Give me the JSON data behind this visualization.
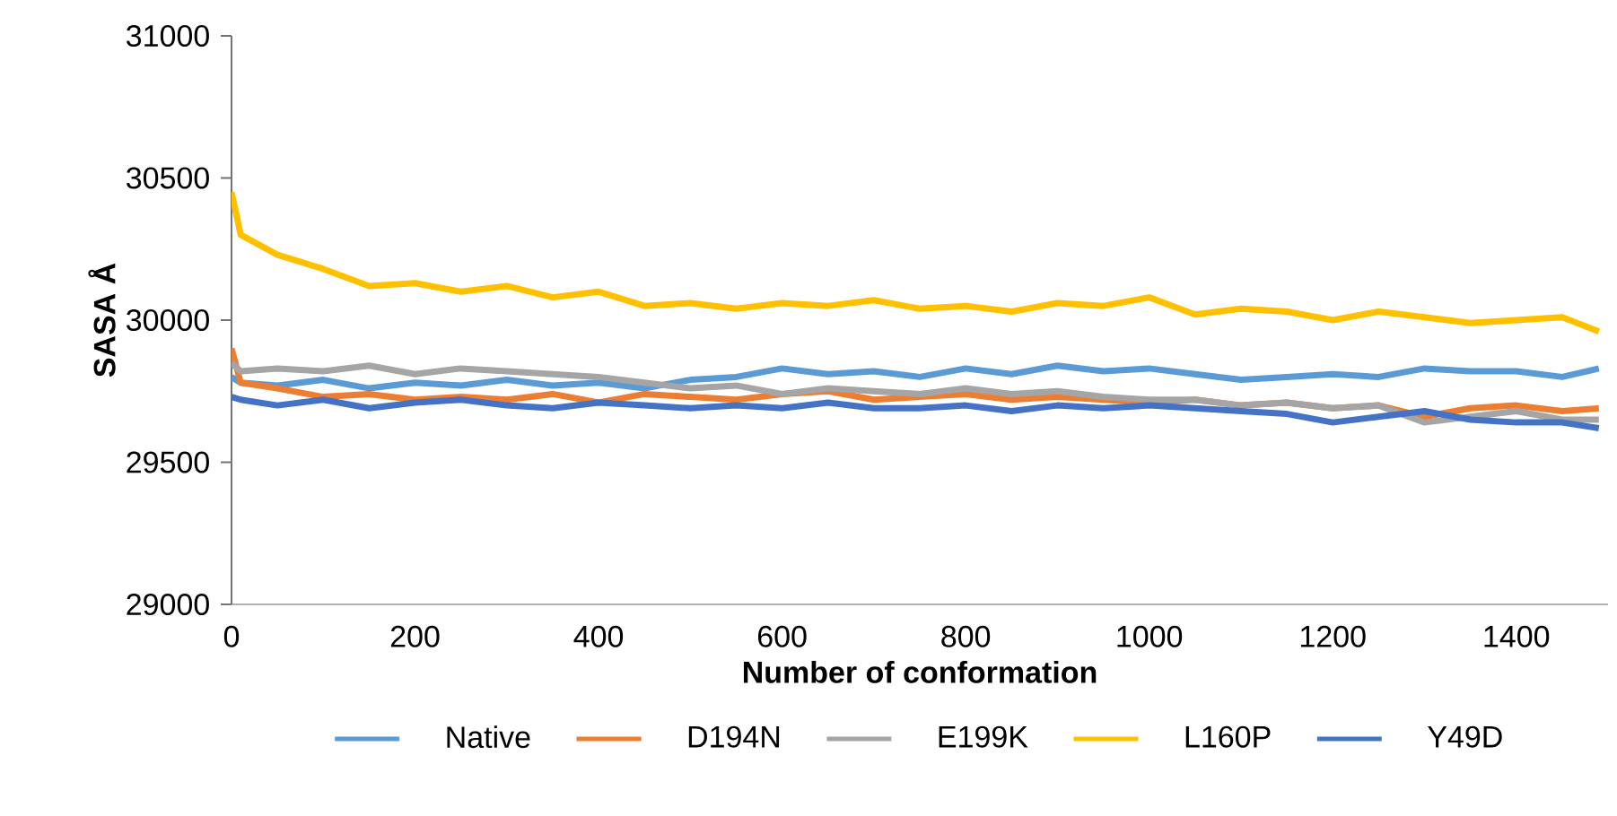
{
  "chart_data": {
    "type": "line",
    "xlabel": "Number of conformation",
    "ylabel": "SASA Å",
    "x": [
      0,
      10,
      50,
      100,
      150,
      200,
      250,
      300,
      350,
      400,
      450,
      500,
      550,
      600,
      650,
      700,
      750,
      800,
      850,
      900,
      950,
      1000,
      1050,
      1100,
      1150,
      1200,
      1250,
      1300,
      1350,
      1400,
      1450,
      1490
    ],
    "series": [
      {
        "name": "Native",
        "color": "#5b9bd5",
        "values": [
          29800,
          29780,
          29770,
          29790,
          29760,
          29780,
          29770,
          29790,
          29770,
          29780,
          29760,
          29790,
          29800,
          29830,
          29810,
          29820,
          29800,
          29830,
          29810,
          29840,
          29820,
          29830,
          29810,
          29790,
          29800,
          29810,
          29800,
          29830,
          29820,
          29820,
          29800,
          29830
        ]
      },
      {
        "name": "D194N",
        "color": "#ed7d31",
        "values": [
          29900,
          29780,
          29760,
          29730,
          29740,
          29720,
          29730,
          29720,
          29740,
          29710,
          29740,
          29730,
          29720,
          29740,
          29750,
          29720,
          29730,
          29740,
          29720,
          29730,
          29720,
          29710,
          29720,
          29700,
          29710,
          29690,
          29700,
          29660,
          29690,
          29700,
          29680,
          29690
        ]
      },
      {
        "name": "E199K",
        "color": "#a5a5a5",
        "values": [
          29850,
          29820,
          29830,
          29820,
          29840,
          29810,
          29830,
          29820,
          29810,
          29800,
          29780,
          29760,
          29770,
          29740,
          29760,
          29750,
          29740,
          29760,
          29740,
          29750,
          29730,
          29720,
          29720,
          29700,
          29710,
          29690,
          29700,
          29640,
          29660,
          29680,
          29650,
          29650
        ]
      },
      {
        "name": "L160P",
        "color": "#ffc000",
        "values": [
          30450,
          30300,
          30230,
          30180,
          30120,
          30130,
          30100,
          30120,
          30080,
          30100,
          30050,
          30060,
          30040,
          30060,
          30050,
          30070,
          30040,
          30050,
          30030,
          30060,
          30050,
          30080,
          30020,
          30040,
          30030,
          30000,
          30030,
          30010,
          29990,
          30000,
          30010,
          29960
        ]
      },
      {
        "name": "Y49D",
        "color": "#4472c4",
        "values": [
          29730,
          29720,
          29700,
          29720,
          29690,
          29710,
          29720,
          29700,
          29690,
          29710,
          29700,
          29690,
          29700,
          29690,
          29710,
          29690,
          29690,
          29700,
          29680,
          29700,
          29690,
          29700,
          29690,
          29680,
          29670,
          29640,
          29660,
          29680,
          29650,
          29640,
          29640,
          29620
        ]
      }
    ],
    "xlim": [
      0,
      1500
    ],
    "ylim": [
      29000,
      31000
    ],
    "xticks": [
      0,
      200,
      400,
      600,
      800,
      1000,
      1200,
      1400
    ],
    "yticks": [
      29000,
      29500,
      30000,
      30500,
      31000
    ],
    "legend": "bottom",
    "grid": false,
    "marker": "none",
    "line_style": "solid"
  }
}
